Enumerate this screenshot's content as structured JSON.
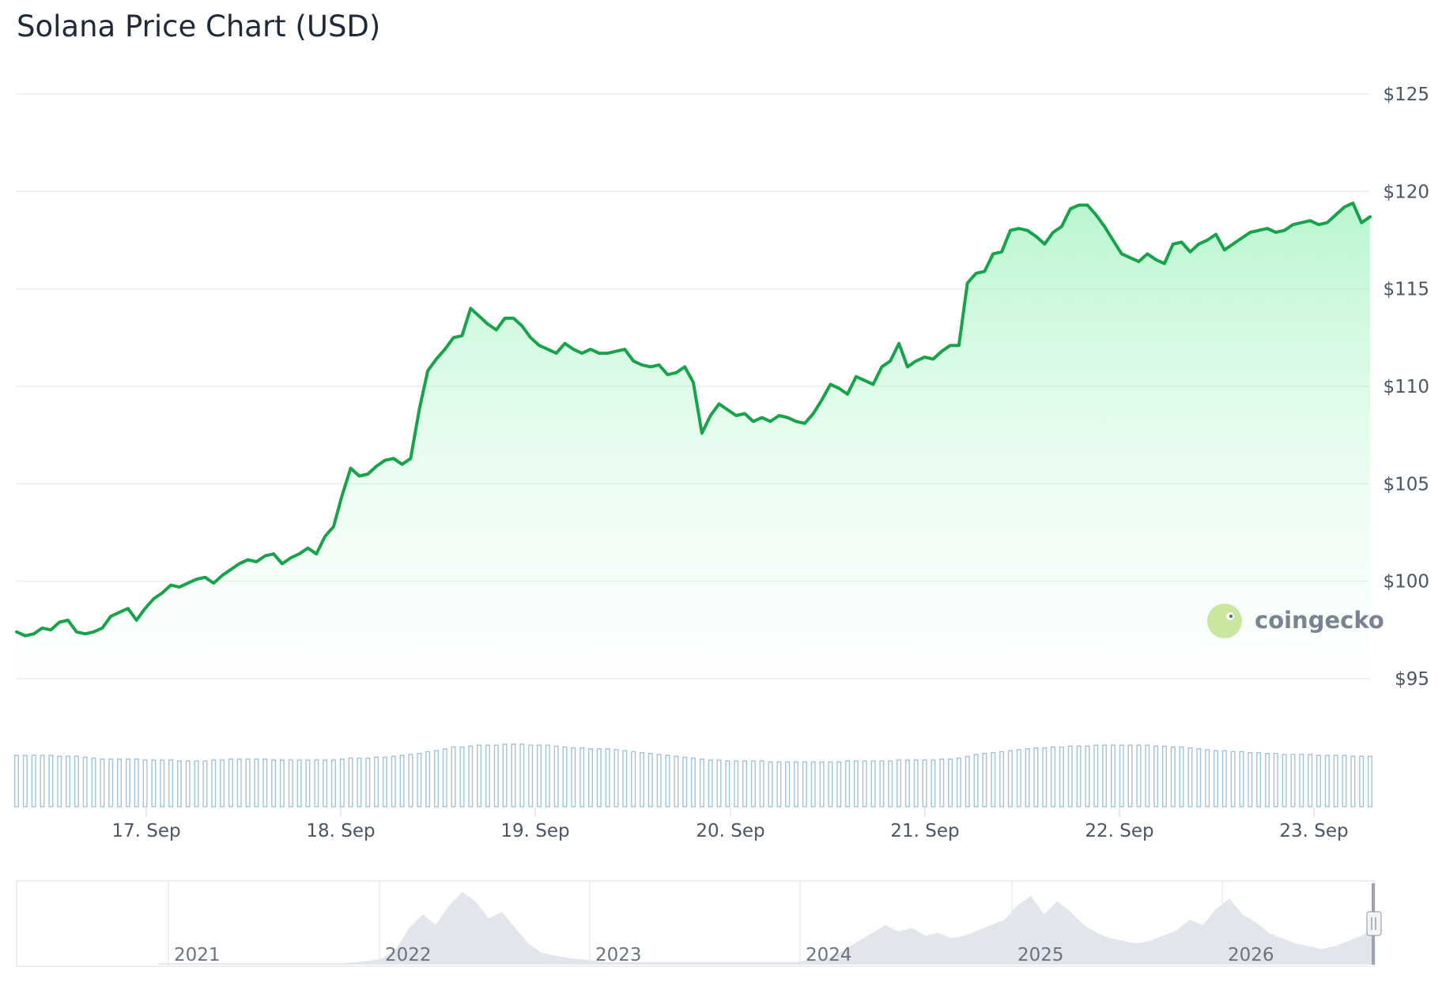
{
  "title": "Solana Price Chart (USD)",
  "watermark": "coingecko",
  "colors": {
    "line": "#16a34a",
    "area": "#86efac",
    "volume": "#9fc3de",
    "grid": "#e5e7eb",
    "text": "#4b5563",
    "navigator": "#d6dce4"
  },
  "chart_data": {
    "type": "line",
    "title": "Solana Price Chart (USD)",
    "xlabel": "",
    "ylabel": "",
    "ylim": [
      95,
      125
    ],
    "y_ticks": [
      "$125",
      "$120",
      "$115",
      "$110",
      "$105",
      "$100",
      "$95"
    ],
    "x_ticks": [
      "17. Sep",
      "18. Sep",
      "19. Sep",
      "20. Sep",
      "21. Sep",
      "22. Sep",
      "23. Sep"
    ],
    "grid": true,
    "legend": "none",
    "series": [
      {
        "values": [
          97.4,
          97.2,
          97.3,
          97.6,
          97.5,
          97.9,
          98.0,
          97.4,
          97.3,
          97.4,
          97.6,
          98.2,
          98.4,
          98.6,
          98.0,
          98.6,
          99.1,
          99.4,
          99.8,
          99.7,
          99.9,
          100.1,
          100.2,
          99.9,
          100.3,
          100.6,
          100.9,
          101.1,
          101.0,
          101.3,
          101.4,
          100.9,
          101.2,
          101.4,
          101.7,
          101.4,
          102.3,
          102.8,
          104.4,
          105.8,
          105.4,
          105.5,
          105.9,
          106.2,
          106.3,
          106.0,
          106.3,
          108.8,
          110.8,
          111.4,
          111.9,
          112.5,
          112.6,
          114.0,
          113.6,
          113.2,
          112.9,
          113.5,
          113.5,
          113.1,
          112.5,
          112.1,
          111.9,
          111.7,
          112.2,
          111.9,
          111.7,
          111.9,
          111.7,
          111.7,
          111.8,
          111.9,
          111.3,
          111.1,
          111.0,
          111.1,
          110.6,
          110.7,
          111.0,
          110.2,
          107.6,
          108.5,
          109.1,
          108.8,
          108.5,
          108.6,
          108.2,
          108.4,
          108.2,
          108.5,
          108.4,
          108.2,
          108.1,
          108.6,
          109.3,
          110.1,
          109.9,
          109.6,
          110.5,
          110.3,
          110.1,
          111.0,
          111.3,
          112.2,
          111.0,
          111.3,
          111.5,
          111.4,
          111.8,
          112.1,
          112.1,
          115.3,
          115.8,
          115.9,
          116.8,
          116.9,
          118.0,
          118.1,
          118.0,
          117.7,
          117.3,
          117.9,
          118.2,
          119.1,
          119.3,
          119.3,
          118.8,
          118.2,
          117.5,
          116.8,
          116.6,
          116.4,
          116.8,
          116.5,
          116.3,
          117.3,
          117.4,
          116.9,
          117.3,
          117.5,
          117.8,
          117.0,
          117.3,
          117.6,
          117.9,
          118.0,
          118.1,
          117.9,
          118.0,
          118.3,
          118.4,
          118.5,
          118.3,
          118.4,
          118.8,
          119.2,
          119.4,
          118.4,
          118.7
        ]
      }
    ],
    "volume": {
      "values": [
        55,
        55,
        55,
        55,
        55,
        54,
        54,
        54,
        53,
        52,
        51,
        51,
        51,
        51,
        51,
        50,
        50,
        50,
        50,
        49,
        49,
        49,
        49,
        50,
        50,
        51,
        51,
        51,
        51,
        51,
        50,
        50,
        50,
        50,
        50,
        50,
        50,
        50,
        51,
        52,
        52,
        52,
        53,
        53,
        54,
        55,
        56,
        57,
        59,
        60,
        62,
        64,
        64,
        65,
        66,
        66,
        66,
        67,
        67,
        67,
        66,
        66,
        66,
        65,
        64,
        63,
        63,
        62,
        62,
        62,
        61,
        60,
        59,
        58,
        57,
        56,
        55,
        54,
        53,
        52,
        51,
        50,
        50,
        49,
        49,
        49,
        49,
        49,
        48,
        48,
        48,
        48,
        48,
        48,
        48,
        48,
        48,
        49,
        49,
        49,
        49,
        49,
        49,
        50,
        50,
        50,
        50,
        50,
        51,
        51,
        52,
        54,
        56,
        57,
        58,
        59,
        60,
        61,
        62,
        63,
        63,
        64,
        64,
        65,
        65,
        65,
        66,
        66,
        66,
        66,
        66,
        66,
        66,
        65,
        65,
        64,
        64,
        63,
        62,
        61,
        60,
        60,
        59,
        59,
        58,
        58,
        57,
        57,
        56,
        56,
        56,
        56,
        55,
        55,
        55,
        55,
        54,
        54,
        54
      ]
    },
    "navigator": {
      "years": [
        "2021",
        "2022",
        "2023",
        "2024",
        "2025",
        "2026"
      ],
      "values": [
        1,
        1,
        1,
        1,
        1,
        1,
        1,
        1,
        1,
        1,
        1,
        1,
        1,
        1,
        1,
        2,
        3,
        5,
        12,
        28,
        38,
        30,
        45,
        55,
        48,
        35,
        40,
        28,
        16,
        9,
        7,
        5,
        4,
        3,
        2,
        2,
        2,
        2,
        2,
        2,
        2,
        2,
        2,
        2,
        2,
        2,
        2,
        2,
        2,
        3,
        4,
        6,
        12,
        18,
        24,
        30,
        25,
        28,
        22,
        24,
        20,
        22,
        26,
        30,
        34,
        45,
        52,
        38,
        48,
        40,
        30,
        24,
        20,
        18,
        16,
        18,
        22,
        26,
        34,
        30,
        42,
        50,
        38,
        32,
        24,
        20,
        16,
        14,
        12,
        14,
        18,
        22,
        28
      ]
    }
  }
}
